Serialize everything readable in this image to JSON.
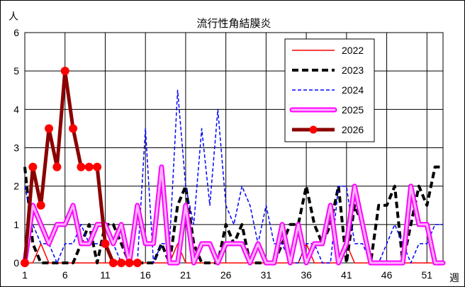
{
  "chart_data": {
    "type": "line",
    "title": "流行性角結膜炎",
    "ylabel": "人",
    "xlabel": "週",
    "ylim": [
      0,
      6
    ],
    "yticks": [
      0,
      1,
      2,
      3,
      4,
      5,
      6
    ],
    "xlim": [
      1,
      53
    ],
    "xticks": [
      1,
      6,
      11,
      16,
      21,
      26,
      31,
      36,
      41,
      46,
      51
    ],
    "grid": true,
    "legend_position": "top-right",
    "series": [
      {
        "name": "2022",
        "color": "#ff0000",
        "style": "solid-thin",
        "values": [
          0,
          0,
          0.5,
          0,
          0,
          0,
          0,
          0,
          0,
          0,
          0,
          0,
          0,
          0,
          0,
          0,
          0,
          0,
          0,
          0.5,
          0,
          0,
          0,
          0,
          0,
          0,
          0,
          0,
          0,
          0,
          0,
          0,
          0,
          0,
          0,
          0.5,
          0,
          0,
          0,
          0,
          0.5,
          0,
          0,
          0,
          0,
          0,
          0,
          0,
          0,
          0,
          0,
          0
        ]
      },
      {
        "name": "2023",
        "color": "#000000",
        "style": "dashed-thick",
        "values": [
          2.5,
          0.5,
          0,
          0,
          0,
          0,
          0,
          0.5,
          1,
          0,
          1,
          1,
          0.5,
          0,
          0,
          0,
          0,
          0.5,
          0,
          1.5,
          2,
          0.5,
          0,
          0,
          0,
          1,
          0.5,
          1,
          0,
          0,
          0,
          0,
          0.5,
          1,
          1,
          2,
          1,
          0.5,
          1,
          2,
          0,
          1.5,
          1,
          0,
          1.5,
          1.5,
          2,
          0,
          1,
          2,
          1.5,
          2.5,
          2.5
        ]
      },
      {
        "name": "2024",
        "color": "#0000ff",
        "style": "dashed-thin",
        "values": [
          2,
          1,
          0.5,
          0.5,
          0,
          0.5,
          0.5,
          1,
          0.5,
          0.5,
          0.5,
          0.5,
          0,
          0,
          0,
          3.5,
          0,
          0.5,
          0.5,
          4.5,
          2,
          1,
          3.5,
          1.5,
          4,
          1.5,
          1,
          2,
          1.5,
          0.5,
          1.5,
          0.5,
          0.5,
          0,
          0,
          0.5,
          0.5,
          0,
          0,
          2,
          2,
          0.5,
          0.5,
          0,
          0,
          0.5,
          1,
          0.5,
          0,
          0.5,
          0.5,
          1,
          1
        ]
      },
      {
        "name": "2025",
        "color": "#ff00ff",
        "style": "thick-light",
        "values": [
          0,
          1.5,
          1,
          0.5,
          1,
          1,
          1.5,
          0.5,
          0.5,
          1,
          1,
          0.5,
          1,
          0,
          1.5,
          0.5,
          0.5,
          2.5,
          0,
          0,
          1.5,
          0,
          0.5,
          0.5,
          0,
          0.5,
          0.5,
          0.5,
          0,
          0.5,
          0,
          0,
          1,
          0,
          1,
          0,
          0.5,
          0.5,
          1.5,
          0,
          0.5,
          2,
          1,
          0,
          0,
          0,
          0,
          0,
          2,
          1,
          1,
          0,
          0
        ]
      },
      {
        "name": "2026",
        "color": "#8b0000",
        "style": "thick-marker",
        "values": [
          0,
          2.5,
          1.5,
          3.5,
          2.5,
          5,
          3.5,
          2.5,
          2.5,
          2.5,
          0.5,
          0,
          0,
          0,
          0
        ]
      }
    ]
  }
}
